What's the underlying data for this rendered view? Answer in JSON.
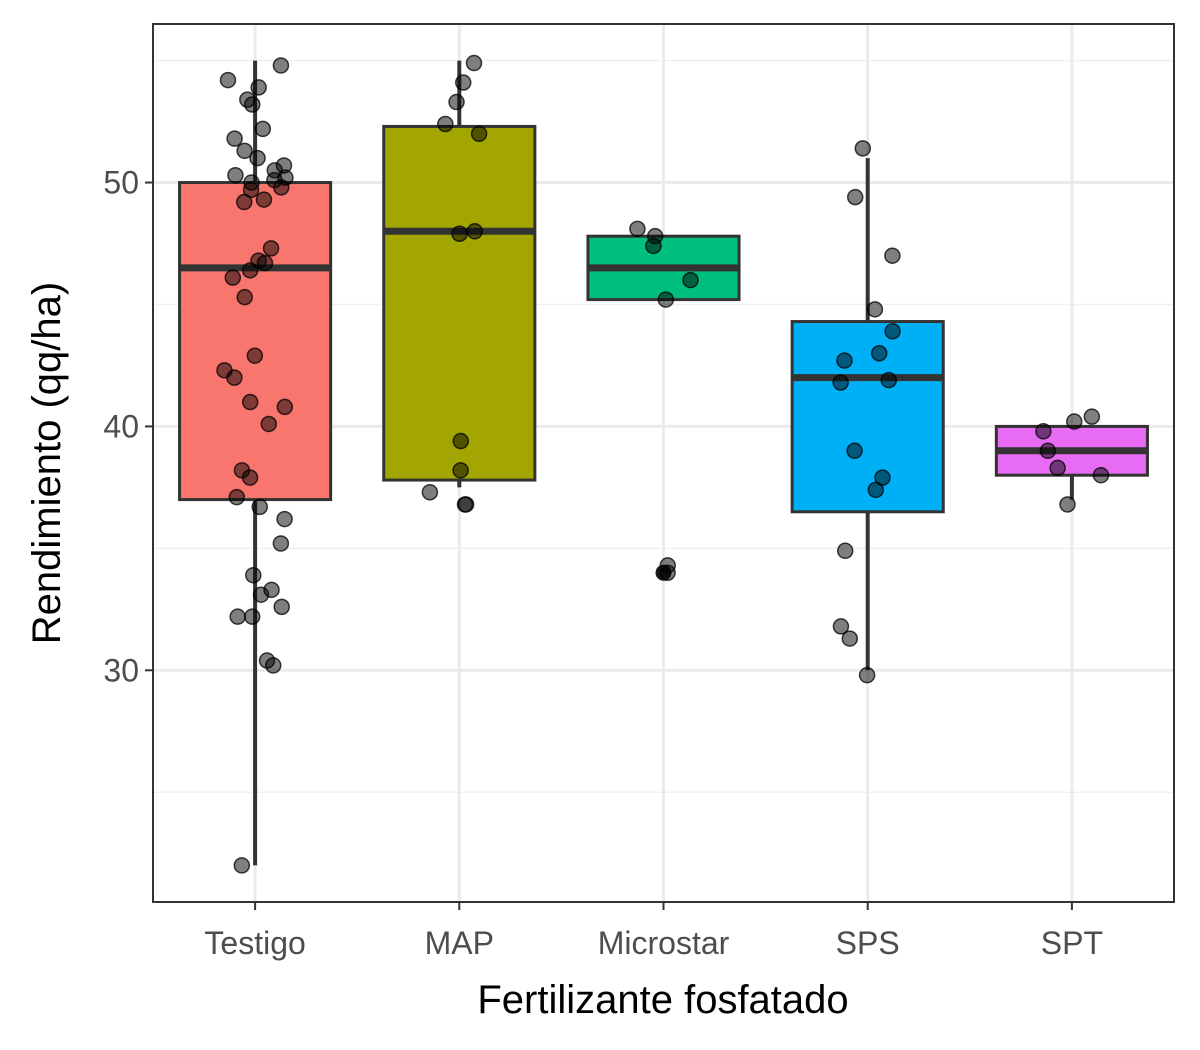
{
  "chart_data": {
    "type": "box",
    "xlabel": "Fertilizante fosfatado",
    "ylabel": "Rendimiento (qq/ha)",
    "ylim": [
      20.5,
      56.5
    ],
    "yticks": [
      30,
      40,
      50
    ],
    "grid": true,
    "categories": [
      "Testigo",
      "MAP",
      "Microstar",
      "SPS",
      "SPT"
    ],
    "boxes": [
      {
        "category": "Testigo",
        "color": "#F8766D",
        "whisker_low": 22.0,
        "q1": 37.0,
        "median": 46.5,
        "q3": 50.0,
        "whisker_high": 55.0,
        "points": [
          54.8,
          54.2,
          53.9,
          53.4,
          53.2,
          52.2,
          51.8,
          51.3,
          51.0,
          50.7,
          50.5,
          50.3,
          50.2,
          50.1,
          50.0,
          49.8,
          49.7,
          49.3,
          49.2,
          47.3,
          46.8,
          46.7,
          46.4,
          46.1,
          45.3,
          42.9,
          42.3,
          42.0,
          41.0,
          40.8,
          40.1,
          38.2,
          37.9,
          37.1,
          36.7,
          36.2,
          35.2,
          33.9,
          33.3,
          33.1,
          32.6,
          32.2,
          32.2,
          30.4,
          30.2,
          22.0
        ]
      },
      {
        "category": "MAP",
        "color": "#A3A500",
        "whisker_low": 37.5,
        "q1": 37.8,
        "median": 48.0,
        "q3": 52.3,
        "whisker_high": 55.0,
        "points": [
          54.9,
          54.1,
          53.3,
          52.4,
          52.0,
          48.0,
          47.9,
          39.4,
          38.2,
          37.3,
          36.8,
          36.8
        ]
      },
      {
        "category": "Microstar",
        "color": "#00BF7D",
        "whisker_low": 45.2,
        "q1": 45.2,
        "median": 46.5,
        "q3": 47.8,
        "whisker_high": 47.8,
        "points": [
          48.1,
          47.8,
          47.4,
          46.0,
          45.2,
          34.3,
          34.0
        ],
        "outliers": [
          34.0
        ]
      },
      {
        "category": "SPS",
        "color": "#00B0F6",
        "whisker_low": 30.0,
        "q1": 36.5,
        "median": 42.0,
        "q3": 44.3,
        "whisker_high": 51.0,
        "points": [
          51.4,
          49.4,
          47.0,
          44.8,
          43.9,
          43.0,
          42.7,
          41.9,
          41.8,
          39.0,
          37.9,
          37.4,
          34.9,
          31.8,
          31.3,
          29.8
        ]
      },
      {
        "category": "SPT",
        "color": "#E76BF3",
        "whisker_low": 37.0,
        "q1": 38.0,
        "median": 39.0,
        "q3": 40.0,
        "whisker_high": 40.0,
        "points": [
          40.4,
          40.2,
          39.8,
          39.0,
          38.3,
          38.0,
          36.8
        ]
      }
    ]
  }
}
